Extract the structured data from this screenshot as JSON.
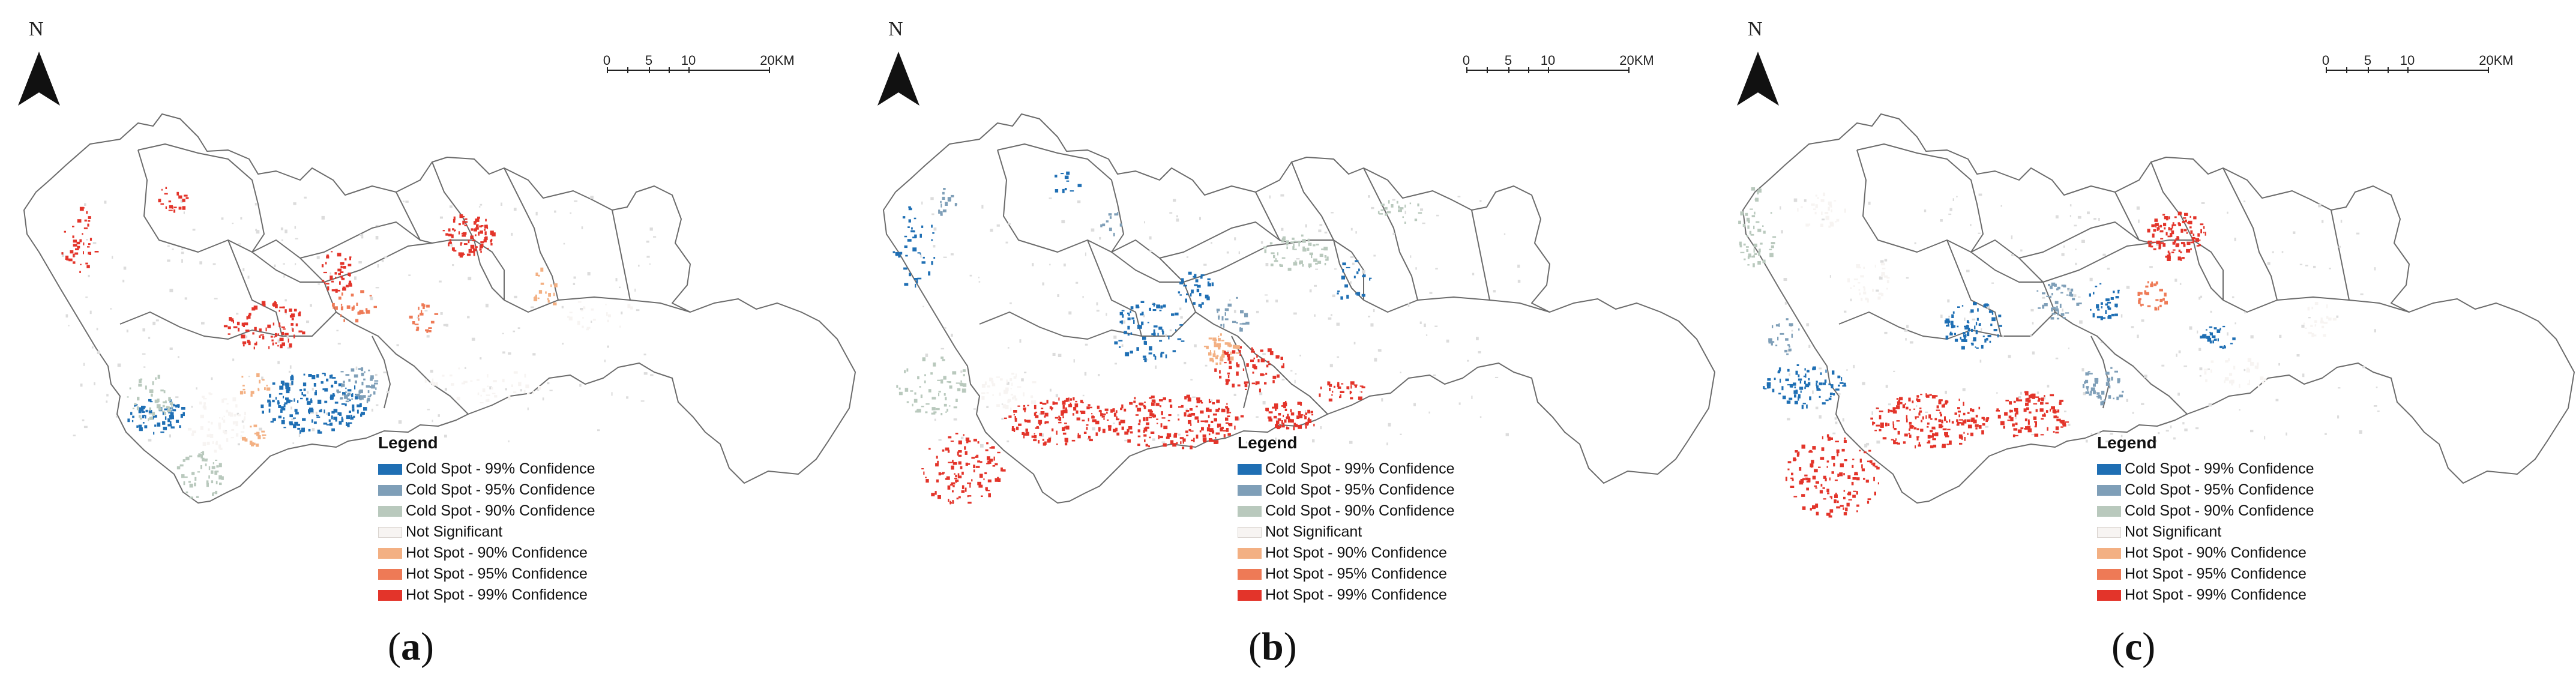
{
  "north_label": "N",
  "scale": {
    "ticks": [
      "0",
      "5",
      "10",
      "20KM"
    ]
  },
  "legend": {
    "title": "Legend",
    "items": [
      {
        "label": "Cold Spot - 99% Confidence",
        "color": "#1f6fb4"
      },
      {
        "label": "Cold Spot - 95% Confidence",
        "color": "#7f9fb8"
      },
      {
        "label": "Cold Spot - 90% Confidence",
        "color": "#b9c9bd"
      },
      {
        "label": "Not Significant",
        "color": "#f7f4f2"
      },
      {
        "label": "Hot Spot - 90% Confidence",
        "color": "#f3b083"
      },
      {
        "label": "Hot Spot - 95% Confidence",
        "color": "#ee7a56"
      },
      {
        "label": "Hot Spot - 99% Confidence",
        "color": "#e3342a"
      }
    ]
  },
  "panels": [
    {
      "id": "a",
      "caption_open": "(",
      "caption_letter": "a",
      "caption_close": ")"
    },
    {
      "id": "b",
      "caption_open": "(",
      "caption_letter": "b",
      "caption_close": ")"
    },
    {
      "id": "c",
      "caption_open": "(",
      "caption_letter": "c",
      "caption_close": ")"
    }
  ],
  "colors": {
    "boundary": "#6b6b6b",
    "not_significant": "#dcdcdc"
  }
}
